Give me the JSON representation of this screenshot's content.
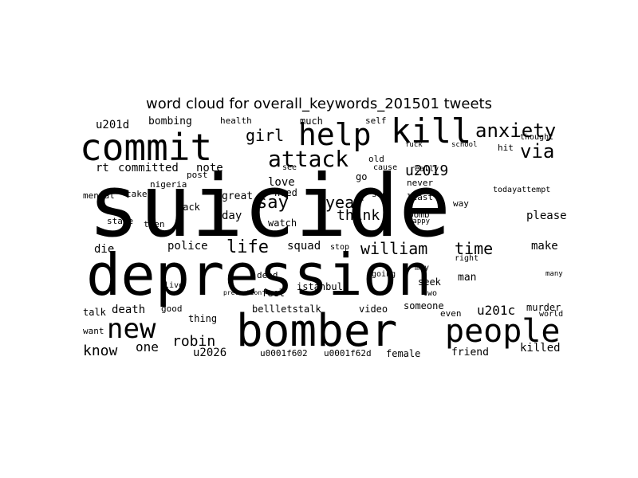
{
  "title": "word cloud for overall_keywords_201501 tweets",
  "color": "#000000",
  "background": "#ffffff",
  "words": [
    "suicide",
    "depression",
    "bomber",
    "commit",
    "kill",
    "help",
    "people",
    "new",
    "attack",
    "anxiety",
    "via",
    "u2019",
    "girl",
    "rt",
    "committed",
    "note",
    "u201d",
    "bombing",
    "health",
    "much",
    "self",
    "life",
    "william",
    "time",
    "say",
    "year",
    "think",
    "love",
    "need",
    "police",
    "squad",
    "make",
    "robin",
    "u201c",
    "death",
    "know",
    "one",
    "u2026",
    "die",
    "please",
    "killed",
    "bellletstalk",
    "video",
    "someone",
    "friend",
    "female",
    "u0001f602",
    "u0001f62d",
    "day",
    "great",
    "watch",
    "back",
    "take",
    "state",
    "mental",
    "nigeria",
    "teen",
    "post",
    "istanbul",
    "seek",
    "man",
    "feel",
    "dead",
    "even",
    "murder",
    "world",
    "talk",
    "want",
    "thing",
    "good",
    "live",
    "two",
    "bomb",
    "may",
    "right",
    "going",
    "sad",
    "least",
    "never",
    "go",
    "cause",
    "old",
    "see",
    "really",
    "hit",
    "thought",
    "todayattempt",
    "way",
    "stop",
    "happy",
    "fuck",
    "school",
    "many",
    "prevention"
  ]
}
